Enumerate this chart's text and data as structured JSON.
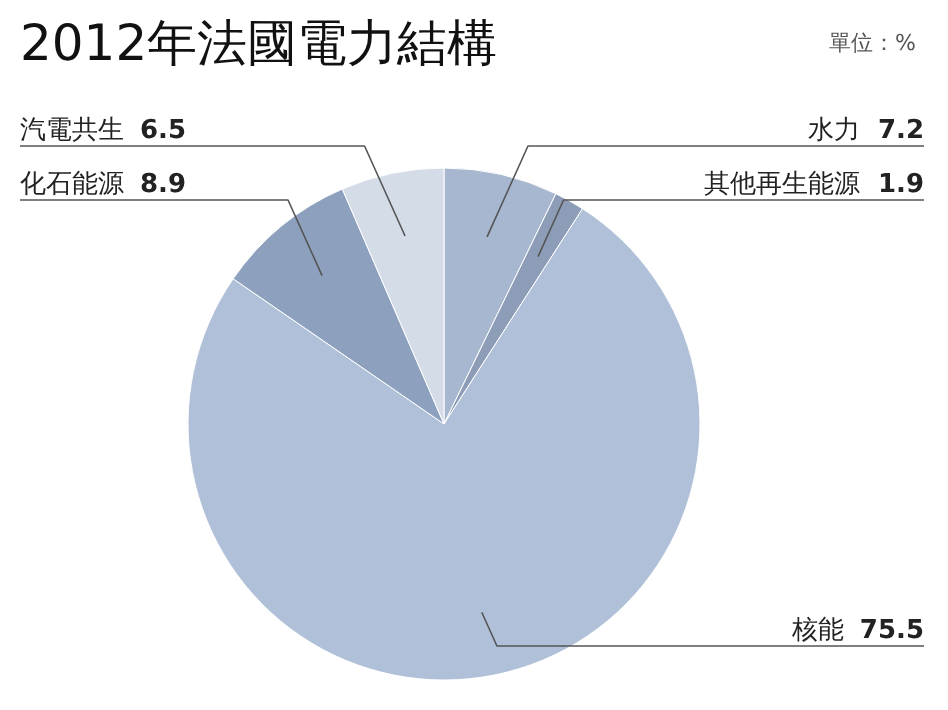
{
  "chart_data": {
    "type": "pie",
    "title": "2012年法國電力結構",
    "subtitle": "單位：%",
    "categories": [
      "水力",
      "其他再生能源",
      "核能",
      "化石能源",
      "汽電共生"
    ],
    "values": [
      7.2,
      1.9,
      75.5,
      8.9,
      6.5
    ],
    "colors": [
      "#a7b7cf",
      "#8d9cb7",
      "#afc0d8",
      "#8da1bf",
      "#d4dce8"
    ],
    "data_labels": true
  }
}
